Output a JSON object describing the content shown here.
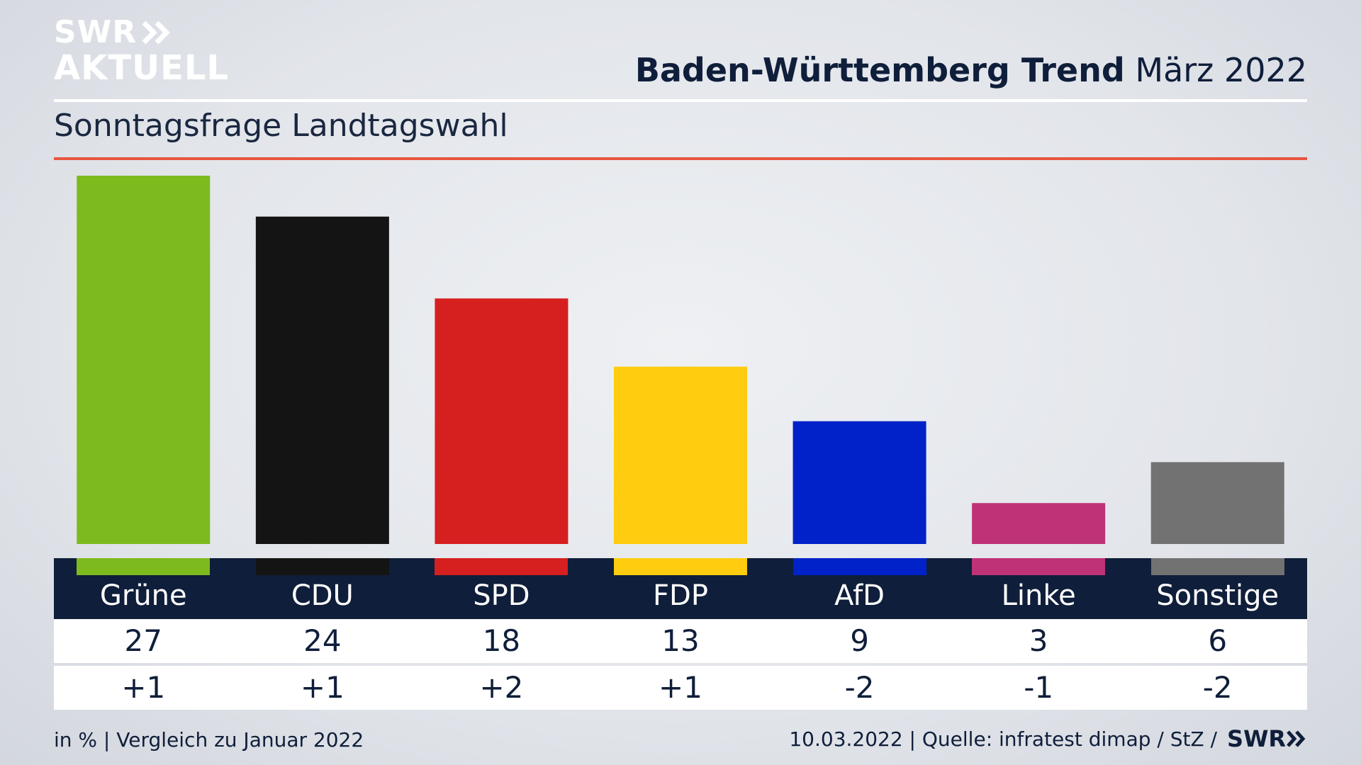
{
  "logo": {
    "line1": "SWR",
    "line2": "AKTUELL"
  },
  "header": {
    "title_bold": "Baden-Württemberg Trend",
    "title_light": "März 2022"
  },
  "subtitle": "Sonntagsfrage Landtagswahl",
  "footer": {
    "left": "in % | Vergleich zu Januar 2022",
    "right": "10.03.2022 | Quelle: infratest dimap / StZ /",
    "brand": "SWR"
  },
  "colors": {
    "accent_red": "#e8553f",
    "navy": "#0f1e3a"
  },
  "chart_data": {
    "type": "bar",
    "title": "Sonntagsfrage Landtagswahl",
    "categories": [
      "Grüne",
      "CDU",
      "SPD",
      "FDP",
      "AfD",
      "Linke",
      "Sonstige"
    ],
    "values": [
      27,
      24,
      18,
      13,
      9,
      3,
      6
    ],
    "value_labels": [
      "27",
      "24",
      "18",
      "13",
      "9",
      "3",
      "6"
    ],
    "changes": [
      "+1",
      "+1",
      "+2",
      "+1",
      "-2",
      "-1",
      "-2"
    ],
    "colors": [
      "#7dba1e",
      "#141414",
      "#d61f1f",
      "#ffcc0f",
      "#0022c8",
      "#bf3277",
      "#727272"
    ],
    "ylim": [
      0,
      27
    ],
    "grid": false,
    "legend": "none"
  }
}
